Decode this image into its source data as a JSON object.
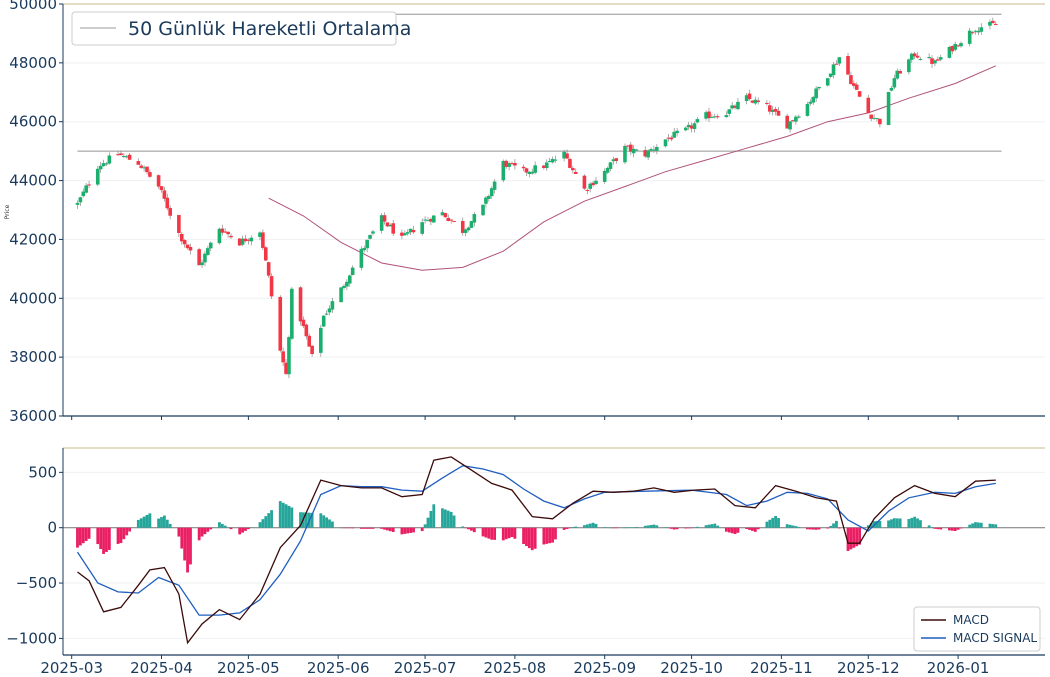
{
  "colors": {
    "up": "#26a69a",
    "up_candle": "#1aaf6c",
    "down": "#f23645",
    "hist_up": "#26a69a",
    "hist_down": "#e91e63",
    "ma": "#b0527a",
    "macd": "#3b0a0a",
    "signal": "#1f5fbf",
    "axis": "#1a3a5c",
    "grid": "#eef0f2",
    "hline": "#b0b0b0",
    "topline": "#c8b98a"
  },
  "chart_data": [
    {
      "type": "candlestick",
      "ylabel": "Price",
      "ylim": [
        36000,
        50000
      ],
      "yticks": [
        "36000",
        "38000",
        "40000",
        "42000",
        "44000",
        "46000",
        "48000",
        "50000"
      ],
      "ytick_values": [
        36000,
        38000,
        40000,
        42000,
        44000,
        46000,
        48000,
        50000
      ],
      "x_range": [
        "2025-02-26",
        "2026-01-31"
      ],
      "legend": {
        "position": "top-left",
        "entries": [
          "50 Günlük Hareketli Ortalama"
        ]
      },
      "hlines": [
        49650,
        45000
      ],
      "close_anchors": [
        [
          "2025-03-03",
          43200
        ],
        [
          "2025-03-10",
          44500
        ],
        [
          "2025-03-17",
          44900
        ],
        [
          "2025-03-24",
          44600
        ],
        [
          "2025-03-31",
          43800
        ],
        [
          "2025-04-07",
          42200
        ],
        [
          "2025-04-14",
          41100
        ],
        [
          "2025-04-21",
          42400
        ],
        [
          "2025-04-28",
          41900
        ],
        [
          "2025-05-05",
          42300
        ],
        [
          "2025-05-08",
          40700
        ],
        [
          "2025-05-12",
          38200
        ],
        [
          "2025-05-14",
          37400
        ],
        [
          "2025-05-16",
          40200
        ],
        [
          "2025-05-20",
          39000
        ],
        [
          "2025-05-23",
          38000
        ],
        [
          "2025-05-27",
          39400
        ],
        [
          "2025-06-02",
          40300
        ],
        [
          "2025-06-09",
          41600
        ],
        [
          "2025-06-16",
          42700
        ],
        [
          "2025-06-23",
          42000
        ],
        [
          "2025-06-30",
          42600
        ],
        [
          "2025-07-07",
          42900
        ],
        [
          "2025-07-14",
          42300
        ],
        [
          "2025-07-21",
          43100
        ],
        [
          "2025-07-28",
          44600
        ],
        [
          "2025-08-04",
          44300
        ],
        [
          "2025-08-11",
          44500
        ],
        [
          "2025-08-18",
          44900
        ],
        [
          "2025-08-25",
          43700
        ],
        [
          "2025-09-01",
          44300
        ],
        [
          "2025-09-08",
          45100
        ],
        [
          "2025-09-15",
          44900
        ],
        [
          "2025-09-22",
          45400
        ],
        [
          "2025-09-29",
          45700
        ],
        [
          "2025-10-06",
          46200
        ],
        [
          "2025-10-13",
          46300
        ],
        [
          "2025-10-20",
          46800
        ],
        [
          "2025-10-27",
          46500
        ],
        [
          "2025-11-03",
          45900
        ],
        [
          "2025-11-10",
          46600
        ],
        [
          "2025-11-17",
          47600
        ],
        [
          "2025-11-21",
          48200
        ],
        [
          "2025-11-26",
          47200
        ],
        [
          "2025-12-01",
          46300
        ],
        [
          "2025-12-05",
          46000
        ],
        [
          "2025-12-10",
          47500
        ],
        [
          "2025-12-17",
          48300
        ],
        [
          "2025-12-24",
          48000
        ],
        [
          "2025-12-31",
          48600
        ],
        [
          "2026-01-07",
          49200
        ],
        [
          "2026-01-14",
          49300
        ]
      ],
      "ma50": [
        [
          "2025-05-08",
          43400
        ],
        [
          "2025-05-20",
          42800
        ],
        [
          "2025-06-02",
          41900
        ],
        [
          "2025-06-16",
          41200
        ],
        [
          "2025-06-30",
          40950
        ],
        [
          "2025-07-14",
          41050
        ],
        [
          "2025-07-28",
          41600
        ],
        [
          "2025-08-11",
          42600
        ],
        [
          "2025-08-25",
          43300
        ],
        [
          "2025-09-08",
          43800
        ],
        [
          "2025-09-22",
          44300
        ],
        [
          "2025-10-06",
          44700
        ],
        [
          "2025-10-20",
          45100
        ],
        [
          "2025-11-03",
          45500
        ],
        [
          "2025-11-17",
          46000
        ],
        [
          "2025-12-01",
          46300
        ],
        [
          "2025-12-15",
          46800
        ],
        [
          "2025-12-31",
          47300
        ],
        [
          "2026-01-14",
          47900
        ]
      ]
    },
    {
      "type": "line",
      "ylim": [
        -1150,
        720
      ],
      "yticks": [
        "−1000",
        "−500",
        "0",
        "500"
      ],
      "ytick_values": [
        -1000,
        -500,
        0,
        500
      ],
      "xticks": [
        "2025-03",
        "2025-04",
        "2025-05",
        "2025-06",
        "2025-07",
        "2025-08",
        "2025-09",
        "2025-10",
        "2025-11",
        "2025-12",
        "2026-01"
      ],
      "xtick_dates": [
        "2025-03-01",
        "2025-04-01",
        "2025-05-01",
        "2025-06-01",
        "2025-07-01",
        "2025-08-01",
        "2025-09-01",
        "2025-10-01",
        "2025-11-01",
        "2025-12-01",
        "2026-01-01"
      ],
      "legend": {
        "position": "bottom-right"
      },
      "series": [
        {
          "name": "MACD",
          "points": [
            [
              "2025-03-03",
              -400
            ],
            [
              "2025-03-07",
              -480
            ],
            [
              "2025-03-12",
              -760
            ],
            [
              "2025-03-18",
              -720
            ],
            [
              "2025-03-24",
              -520
            ],
            [
              "2025-03-28",
              -380
            ],
            [
              "2025-04-02",
              -360
            ],
            [
              "2025-04-07",
              -600
            ],
            [
              "2025-04-10",
              -1040
            ],
            [
              "2025-04-15",
              -870
            ],
            [
              "2025-04-21",
              -740
            ],
            [
              "2025-04-28",
              -830
            ],
            [
              "2025-05-05",
              -600
            ],
            [
              "2025-05-12",
              -180
            ],
            [
              "2025-05-19",
              20
            ],
            [
              "2025-05-26",
              430
            ],
            [
              "2025-06-02",
              380
            ],
            [
              "2025-06-09",
              360
            ],
            [
              "2025-06-16",
              360
            ],
            [
              "2025-06-23",
              280
            ],
            [
              "2025-06-30",
              300
            ],
            [
              "2025-07-04",
              610
            ],
            [
              "2025-07-10",
              640
            ],
            [
              "2025-07-17",
              520
            ],
            [
              "2025-07-24",
              400
            ],
            [
              "2025-07-31",
              340
            ],
            [
              "2025-08-07",
              100
            ],
            [
              "2025-08-14",
              80
            ],
            [
              "2025-08-21",
              220
            ],
            [
              "2025-08-28",
              330
            ],
            [
              "2025-09-04",
              320
            ],
            [
              "2025-09-11",
              330
            ],
            [
              "2025-09-18",
              360
            ],
            [
              "2025-09-25",
              320
            ],
            [
              "2025-10-02",
              340
            ],
            [
              "2025-10-09",
              350
            ],
            [
              "2025-10-16",
              200
            ],
            [
              "2025-10-23",
              180
            ],
            [
              "2025-10-30",
              380
            ],
            [
              "2025-11-06",
              330
            ],
            [
              "2025-11-13",
              270
            ],
            [
              "2025-11-20",
              240
            ],
            [
              "2025-11-24",
              -140
            ],
            [
              "2025-11-28",
              -140
            ],
            [
              "2025-12-03",
              80
            ],
            [
              "2025-12-10",
              270
            ],
            [
              "2025-12-17",
              380
            ],
            [
              "2025-12-24",
              310
            ],
            [
              "2025-12-31",
              280
            ],
            [
              "2026-01-07",
              420
            ],
            [
              "2026-01-14",
              430
            ]
          ]
        },
        {
          "name": "MACD SIGNAL",
          "points": [
            [
              "2025-03-03",
              -220
            ],
            [
              "2025-03-10",
              -500
            ],
            [
              "2025-03-17",
              -580
            ],
            [
              "2025-03-24",
              -590
            ],
            [
              "2025-03-31",
              -450
            ],
            [
              "2025-04-07",
              -520
            ],
            [
              "2025-04-14",
              -790
            ],
            [
              "2025-04-21",
              -790
            ],
            [
              "2025-04-28",
              -770
            ],
            [
              "2025-05-05",
              -650
            ],
            [
              "2025-05-12",
              -420
            ],
            [
              "2025-05-19",
              -120
            ],
            [
              "2025-05-26",
              300
            ],
            [
              "2025-06-02",
              380
            ],
            [
              "2025-06-09",
              370
            ],
            [
              "2025-06-16",
              370
            ],
            [
              "2025-06-23",
              340
            ],
            [
              "2025-06-30",
              330
            ],
            [
              "2025-07-07",
              450
            ],
            [
              "2025-07-14",
              560
            ],
            [
              "2025-07-21",
              530
            ],
            [
              "2025-07-28",
              480
            ],
            [
              "2025-08-04",
              350
            ],
            [
              "2025-08-11",
              240
            ],
            [
              "2025-08-18",
              180
            ],
            [
              "2025-08-25",
              260
            ],
            [
              "2025-09-01",
              320
            ],
            [
              "2025-09-15",
              330
            ],
            [
              "2025-10-01",
              340
            ],
            [
              "2025-10-13",
              300
            ],
            [
              "2025-10-20",
              200
            ],
            [
              "2025-10-27",
              240
            ],
            [
              "2025-11-03",
              320
            ],
            [
              "2025-11-10",
              310
            ],
            [
              "2025-11-17",
              260
            ],
            [
              "2025-11-24",
              70
            ],
            [
              "2025-12-01",
              -30
            ],
            [
              "2025-12-08",
              150
            ],
            [
              "2025-12-15",
              270
            ],
            [
              "2025-12-24",
              320
            ],
            [
              "2025-12-31",
              310
            ],
            [
              "2026-01-07",
              370
            ],
            [
              "2026-01-14",
              400
            ]
          ]
        }
      ]
    }
  ]
}
